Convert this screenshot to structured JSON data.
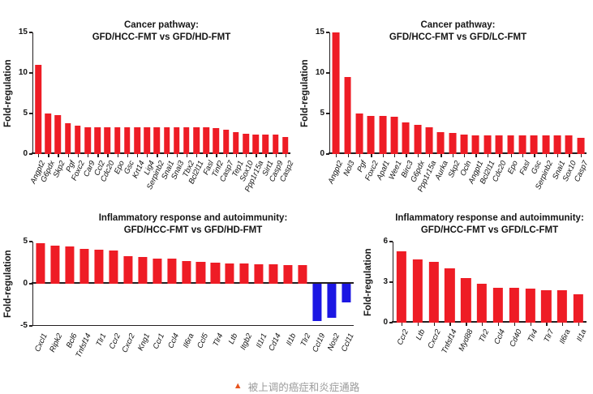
{
  "figure": {
    "caption": {
      "marker": "▲",
      "text": "被上调的癌症和炎症通路"
    }
  },
  "colors": {
    "bar_positive": "#ee1c25",
    "bar_negative": "#1c17e3",
    "axis": "#231f20",
    "caption_text": "#9b9b9b",
    "caption_marker": "#e8541e"
  },
  "chart_data": [
    {
      "type": "bar",
      "title": "Cancer pathway:\nGFD/HCC-FMT vs GFD/HD-FMT",
      "ylabel": "Fold-regulation",
      "xlabel": "",
      "ylim": [
        0,
        15
      ],
      "yticks": [
        0,
        5,
        10,
        15
      ],
      "grid": false,
      "legend": "none",
      "categories": [
        "Angpt2",
        "G6pdx",
        "Skp2",
        "Pgf",
        "Foxc2",
        "Car9",
        "Ccl2",
        "Cdc20",
        "Epo",
        "Gsc",
        "Krt14",
        "Lig4",
        "Serpinb2",
        "Snai1",
        "Snai3",
        "Tbx2",
        "Bcl2l11",
        "Fasl",
        "Tinf2",
        "Casp7",
        "Tep1",
        "Sox10",
        "Ppp1r15a",
        "Sirt1",
        "Casp9",
        "Casp2"
      ],
      "values": [
        11,
        5,
        4.8,
        3.8,
        3.5,
        3.3,
        3.3,
        3.3,
        3.3,
        3.3,
        3.3,
        3.3,
        3.3,
        3.3,
        3.3,
        3.3,
        3.3,
        3.3,
        3.2,
        3.0,
        2.7,
        2.5,
        2.4,
        2.4,
        2.4,
        2.1
      ]
    },
    {
      "type": "bar",
      "title": "Cancer pathway:\nGFD/HCC-FMT vs GFD/LC-FMT",
      "ylabel": "Fold-regulation",
      "xlabel": "",
      "ylim": [
        0,
        15
      ],
      "yticks": [
        0,
        5,
        10,
        15
      ],
      "grid": false,
      "legend": "none",
      "categories": [
        "Angpt2",
        "Nol3",
        "Pgf",
        "Foxc2",
        "Apaf1",
        "Wee1",
        "Birc3",
        "G6pdx",
        "Ppp1r15a",
        "Aurka",
        "Skp2",
        "Ocln",
        "Angpt1",
        "Bcl2l11",
        "Cdc20",
        "Epo",
        "Fasl",
        "Gsc",
        "Serpinb2",
        "Snai1",
        "Sox10",
        "Casp7"
      ],
      "values": [
        15,
        9.5,
        5.0,
        4.7,
        4.7,
        4.6,
        3.9,
        3.6,
        3.3,
        2.7,
        2.6,
        2.4,
        2.3,
        2.3,
        2.3,
        2.3,
        2.3,
        2.3,
        2.3,
        2.3,
        2.3,
        2.0
      ]
    },
    {
      "type": "bar",
      "title": "Inflammatory response and autoimmunity:\nGFD/HCC-FMT vs GFD/HD-FMT",
      "ylabel": "Fold-regulation",
      "xlabel": "",
      "ylim": [
        -5,
        5
      ],
      "yticks": [
        -5,
        0,
        5
      ],
      "grid": false,
      "legend": "none",
      "categories": [
        "Cxcl1",
        "Ripk2",
        "Bcl6",
        "Tnfsf14",
        "Tlr1",
        "Ccr2",
        "Cxcr2",
        "Kng1",
        "Ccr1",
        "Ccl4",
        "Il6ra",
        "Ccl5",
        "Tlr4",
        "Ltb",
        "Itgb2",
        "Il1r1",
        "Cd14",
        "Il1b",
        "Tlr2",
        "Ccl19",
        "Nos2",
        "Ccl11"
      ],
      "values": [
        4.8,
        4.5,
        4.4,
        4.1,
        4.0,
        3.9,
        3.3,
        3.2,
        3.0,
        3.0,
        2.7,
        2.6,
        2.5,
        2.4,
        2.4,
        2.3,
        2.3,
        2.2,
        2.2,
        -4.4,
        -4.0,
        -2.2
      ]
    },
    {
      "type": "bar",
      "title": "Inflammatory response and autoimmunity:\nGFD/HCC-FMT vs GFD/LC-FMT",
      "ylabel": "Fold-regulation",
      "xlabel": "",
      "ylim": [
        0,
        6
      ],
      "yticks": [
        0,
        3,
        6
      ],
      "grid": false,
      "legend": "none",
      "categories": [
        "Ccr2",
        "Ltb",
        "Cxcr2",
        "Tnfsf14",
        "Myd88",
        "Tlr2",
        "Ccl4",
        "Cd40",
        "Tlr4",
        "Tlr7",
        "Il6ra",
        "Il1a"
      ],
      "values": [
        5.3,
        4.7,
        4.5,
        4.0,
        3.3,
        2.9,
        2.6,
        2.6,
        2.5,
        2.4,
        2.4,
        2.1
      ]
    }
  ]
}
